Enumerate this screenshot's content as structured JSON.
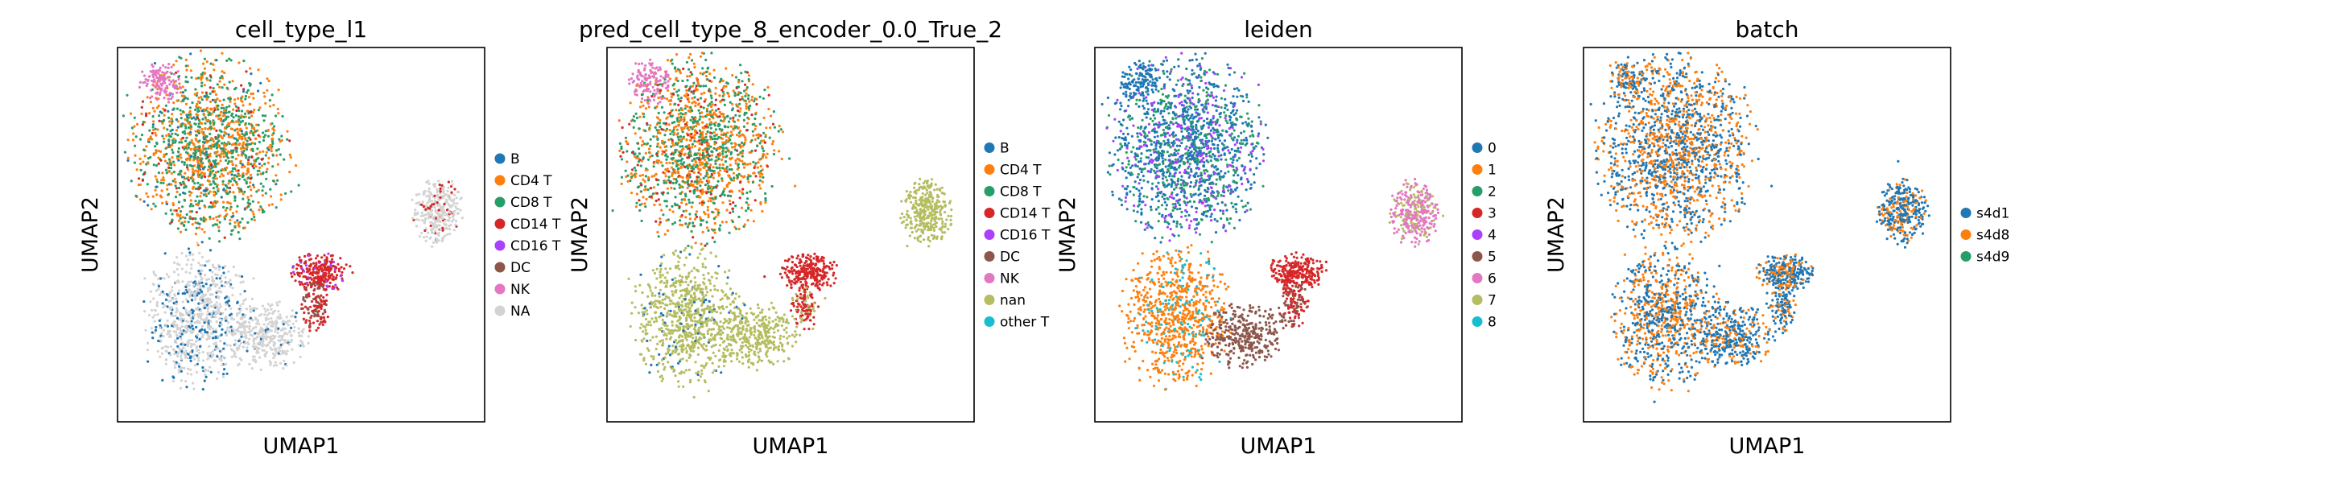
{
  "chart_data": [
    {
      "type": "scatter",
      "title": "cell_type_l1",
      "xlabel": "UMAP1",
      "ylabel": "UMAP2",
      "grid": false,
      "legend_position": "right",
      "categories": [
        "B",
        "CD4 T",
        "CD8 T",
        "CD14 T",
        "CD16 T",
        "DC",
        "NK",
        "NA"
      ],
      "colors": [
        "#1f77b4",
        "#ff7f0e",
        "#279e68",
        "#d62728",
        "#aa40fc",
        "#8c564b",
        "#e377c2",
        "#d3d3d3"
      ]
    },
    {
      "type": "scatter",
      "title": "pred_cell_type_8_encoder_0.0_True_2",
      "xlabel": "UMAP1",
      "ylabel": "UMAP2",
      "grid": false,
      "legend_position": "right",
      "categories": [
        "B",
        "CD4 T",
        "CD8 T",
        "CD14 T",
        "CD16 T",
        "DC",
        "NK",
        "nan",
        "other T"
      ],
      "colors": [
        "#1f77b4",
        "#ff7f0e",
        "#279e68",
        "#d62728",
        "#aa40fc",
        "#8c564b",
        "#e377c2",
        "#b5bd61",
        "#17becf"
      ]
    },
    {
      "type": "scatter",
      "title": "leiden",
      "xlabel": "UMAP1",
      "ylabel": "UMAP2",
      "grid": false,
      "legend_position": "right",
      "categories": [
        "0",
        "1",
        "2",
        "3",
        "4",
        "5",
        "6",
        "7",
        "8"
      ],
      "colors": [
        "#1f77b4",
        "#ff7f0e",
        "#279e68",
        "#d62728",
        "#aa40fc",
        "#8c564b",
        "#e377c2",
        "#b5bd61",
        "#17becf"
      ]
    },
    {
      "type": "scatter",
      "title": "batch",
      "xlabel": "UMAP1",
      "ylabel": "UMAP2",
      "grid": false,
      "legend_position": "right",
      "categories": [
        "s4d1",
        "s4d8",
        "s4d9"
      ],
      "colors": [
        "#1f77b4",
        "#ff7f0e",
        "#279e68"
      ]
    }
  ]
}
